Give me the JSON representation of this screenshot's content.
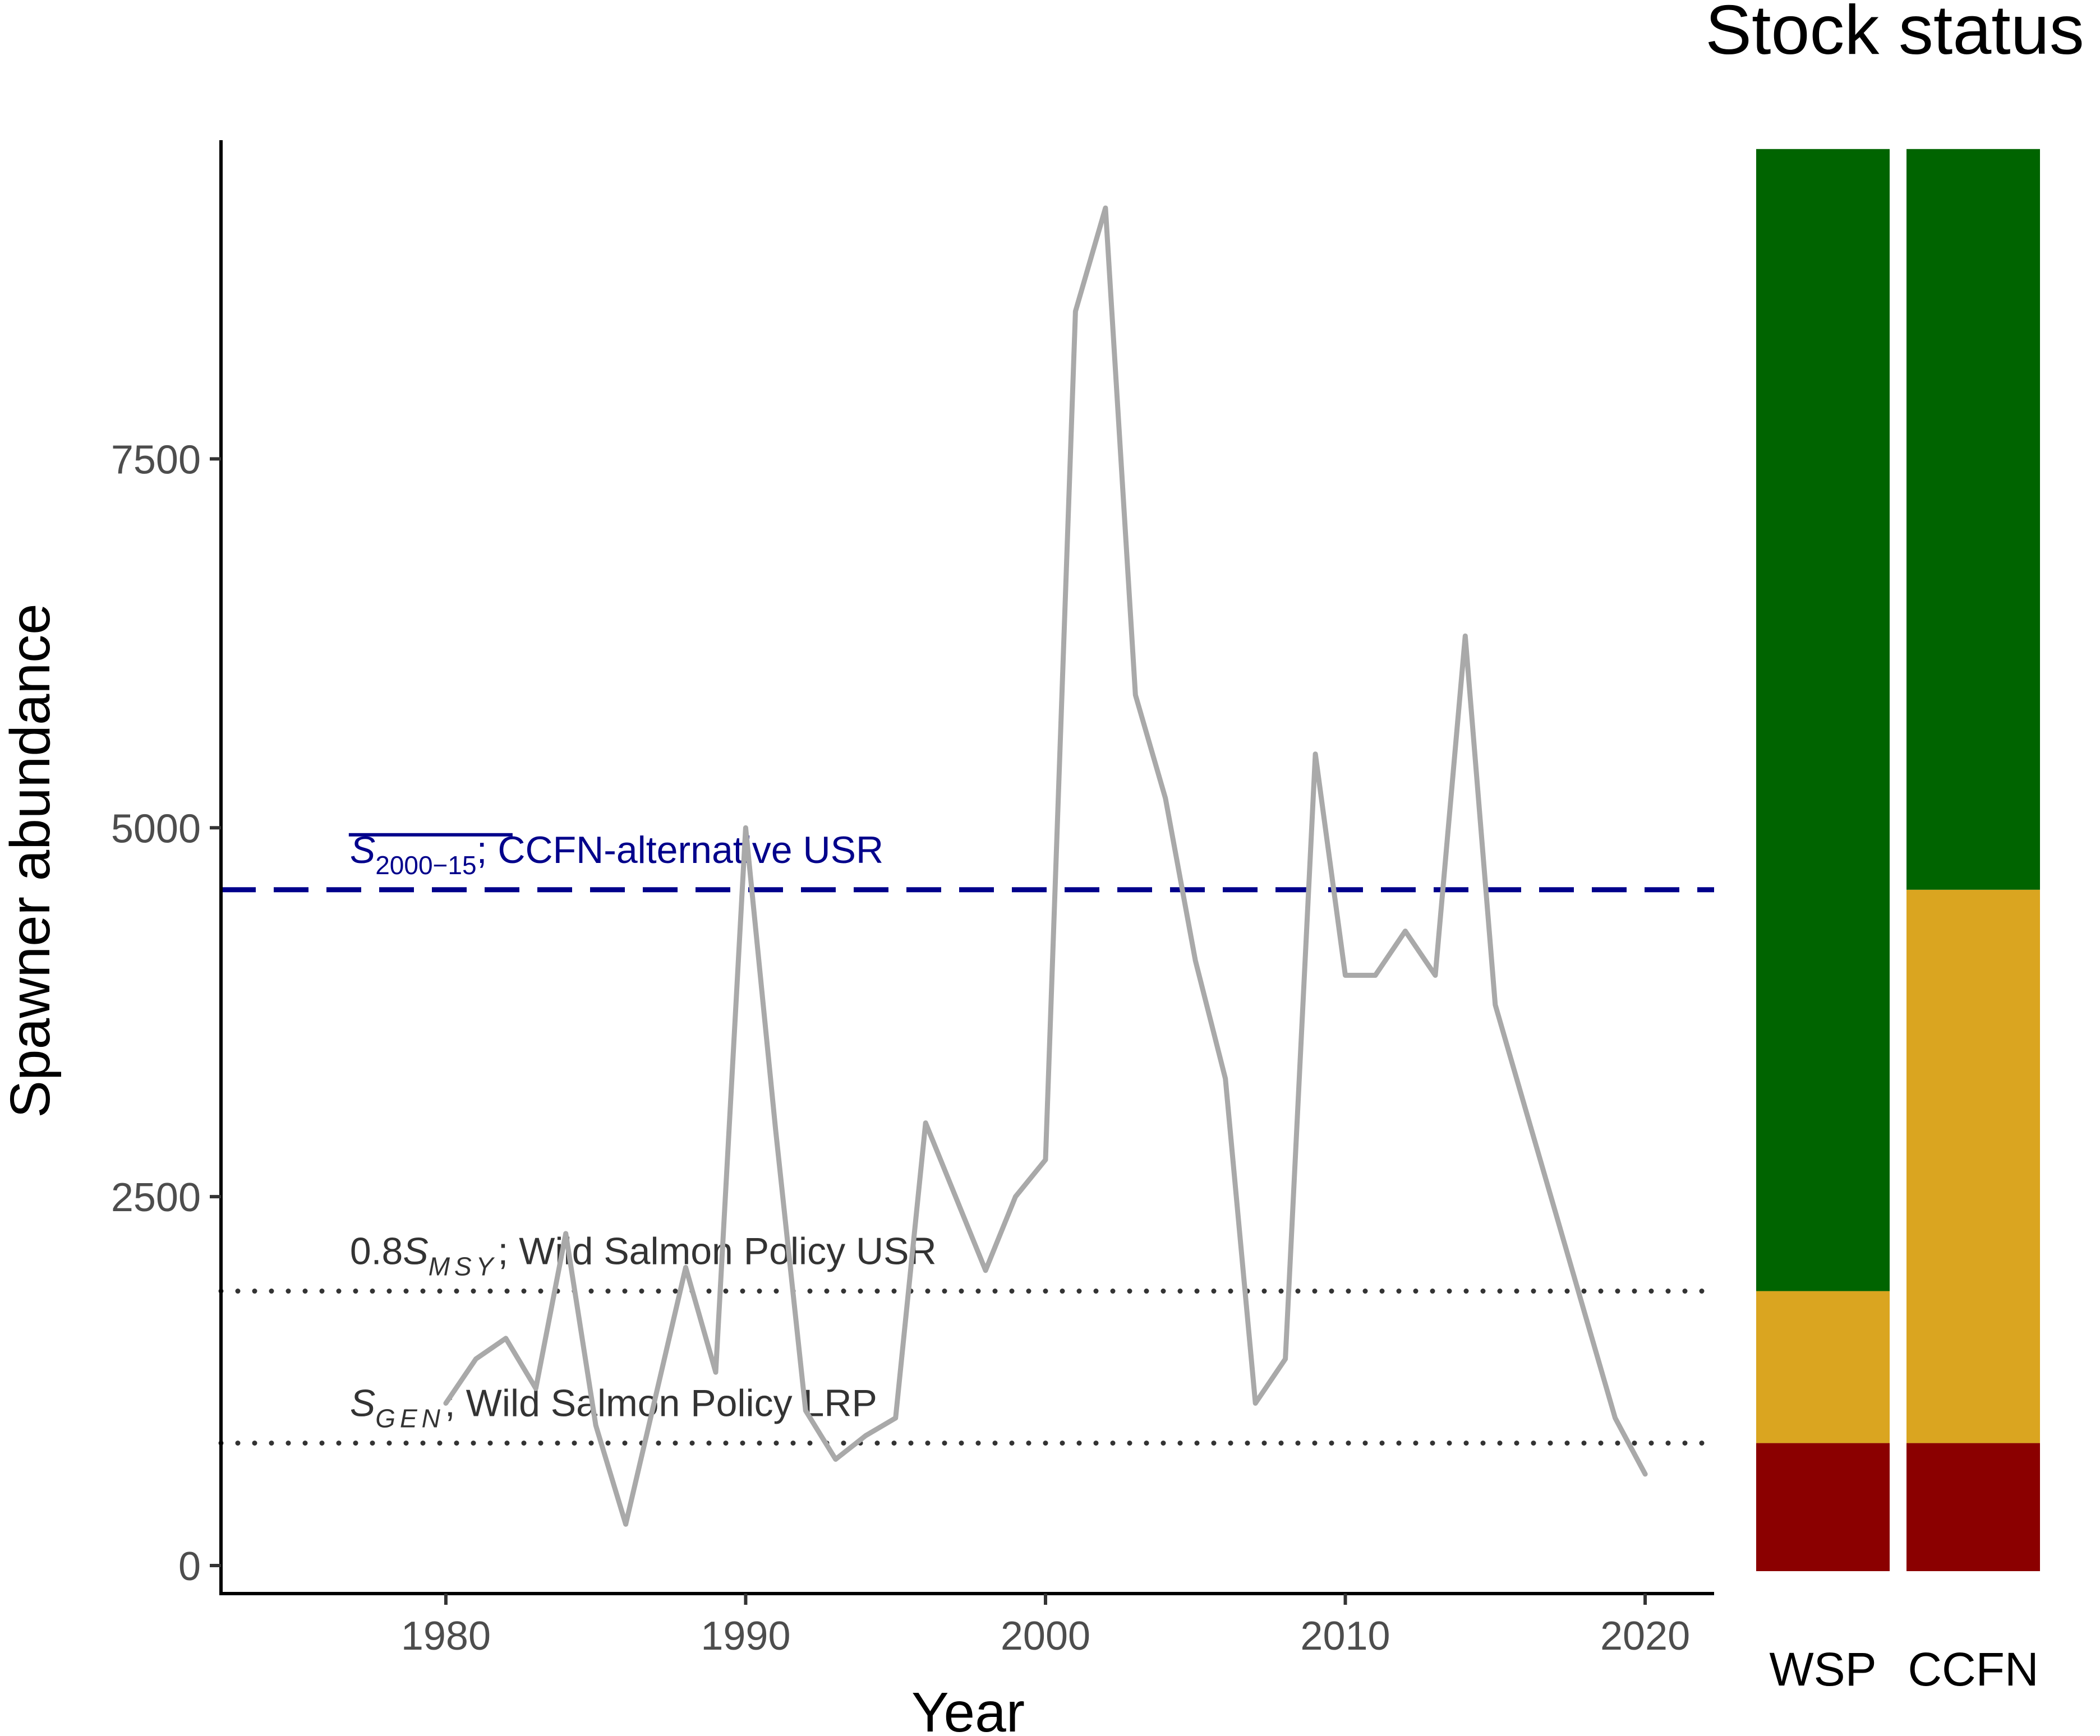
{
  "chart_data": [
    {
      "type": "line",
      "xlabel": "Year",
      "ylabel": "Spawner abundance",
      "xlim": [
        1972.5,
        2022.3
      ],
      "ylim": [
        -190,
        9660
      ],
      "x_ticks": [
        1980,
        1990,
        2000,
        2010,
        2020
      ],
      "y_ticks": [
        0,
        2500,
        5000,
        7500
      ],
      "grid": false,
      "line_color": "#a9a9a9",
      "series": [
        {
          "x": [
            1980,
            1981,
            1982,
            1983,
            1984,
            1985,
            1986,
            1987,
            1988,
            1989,
            1990,
            1991,
            1992,
            1993,
            1994,
            1995,
            1996,
            1997,
            1998,
            1999,
            2000,
            2001,
            2002,
            2003,
            2004,
            2005,
            2006,
            2007,
            2008,
            2009,
            2010,
            2011,
            2012,
            2013,
            2014,
            2015,
            2016,
            2017,
            2018,
            2019,
            2020
          ],
          "values": [
            1100,
            1400,
            1540,
            1200,
            2250,
            950,
            280,
            1150,
            2020,
            1310,
            5000,
            2950,
            1050,
            720,
            880,
            1000,
            3000,
            2500,
            2000,
            2500,
            2750,
            8500,
            9200,
            5900,
            5200,
            4100,
            3300,
            1100,
            1400,
            5500,
            4000,
            4000,
            4300,
            4000,
            6300,
            3800,
            3100,
            2400,
            1700,
            1000,
            620
          ]
        }
      ],
      "reference_lines": [
        {
          "id": "ccfn",
          "value": 4580,
          "style": "dashed",
          "color": "#00008b",
          "label_symbol": "S",
          "label_subscript": "2000−15",
          "label_text": "; CCFN-alternative USR"
        },
        {
          "id": "usr",
          "value": 1860,
          "style": "dotted",
          "color": "#333333",
          "label_prefix": "0.8",
          "label_symbol": "S",
          "label_subscript": "MSY",
          "label_text": "; Wild Salmon Policy USR"
        },
        {
          "id": "lrp",
          "value": 830,
          "style": "dotted",
          "color": "#333333",
          "label_symbol": "S",
          "label_subscript": "GEN",
          "label_text": "; Wild Salmon Policy LRP"
        }
      ]
    },
    {
      "type": "bar",
      "title": "Stock status",
      "categories": [
        "WSP",
        "CCFN"
      ],
      "stacked": true,
      "top_value": 9600,
      "colors": {
        "red": "#8b0000",
        "amber": "#daa520",
        "green": "#006400"
      },
      "series": [
        {
          "values": [
            830,
            830
          ]
        },
        {
          "values": [
            1030,
            3750
          ]
        },
        {
          "values": [
            7740,
            5020
          ]
        }
      ]
    }
  ]
}
